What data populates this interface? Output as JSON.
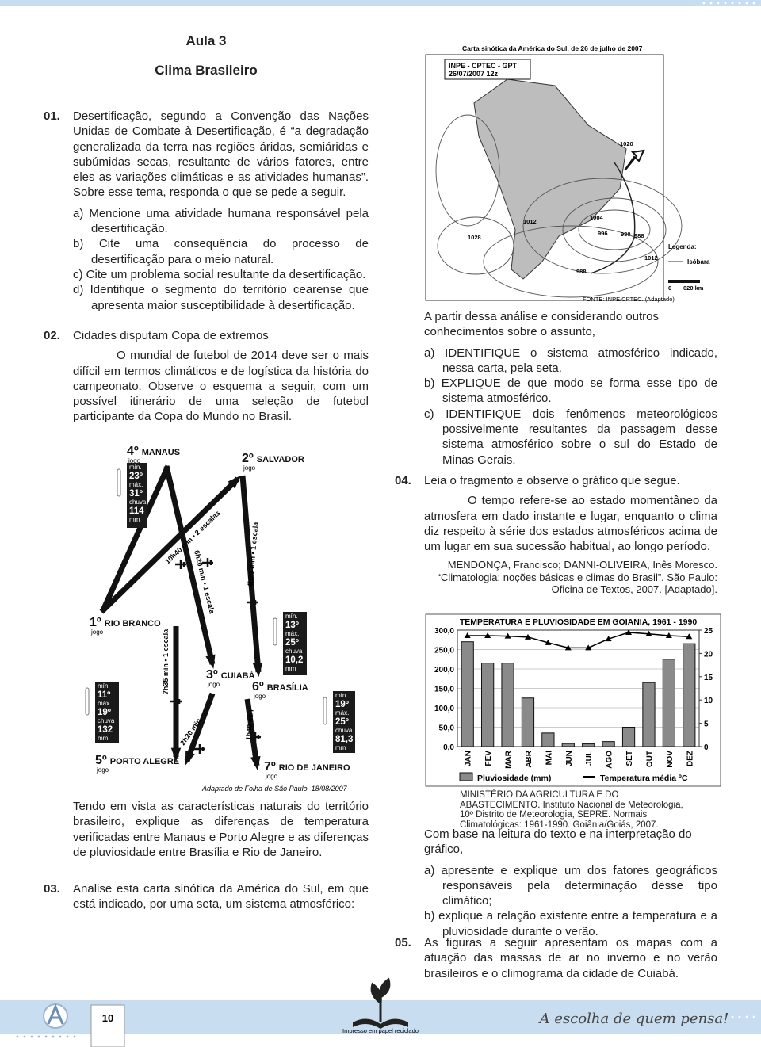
{
  "header": {
    "lesson": "Aula 3",
    "subject": "Clima Brasileiro"
  },
  "q01": {
    "number": "01.",
    "text": "Desertificação, segundo a Convenção das Nações Unidas de Combate à Desertificação, é “a degradação generalizada da terra nas regiões áridas, semiáridas e subúmidas secas, resultante de vários fatores, entre eles as variações climáticas e as atividades humanas”. Sobre esse tema, responda o que se pede a seguir.",
    "items": [
      "a) Mencione uma atividade humana responsável pela desertificação.",
      "b) Cite uma consequência do processo de desertificação para o meio natural.",
      "c) Cite um problema social resultante da desertificação.",
      "d) Identifique o segmento do território cearense que apresenta maior susceptibilidade à desertificação."
    ]
  },
  "q02": {
    "number": "02.",
    "text": "Cidades disputam Copa de extremos",
    "quote": "O mundial de futebol de 2014 deve ser o mais difícil em termos climáticos e de logística da história do campeonato. Observe o esquema a seguir, com um possível itinerário de uma seleção de futebol participante da Copa do Mundo no Brasil.",
    "figure": {
      "cities": [
        {
          "rank": "4º",
          "name": "MANAUS",
          "note": "jogo"
        },
        {
          "rank": "2º",
          "name": "SALVADOR",
          "note": "jogo"
        },
        {
          "rank": "1º",
          "name": "RIO BRANCO",
          "note": "jogo"
        },
        {
          "rank": "3º",
          "name": "CUIABÁ",
          "note": "jogo"
        },
        {
          "rank": "6º",
          "name": "BRASÍLIA",
          "note": "jogo"
        },
        {
          "rank": "5º",
          "name": "PORTO ALEGRE",
          "note": "jogo"
        },
        {
          "rank": "7º",
          "name": "RIO DE JANEIRO",
          "note": "jogo"
        }
      ],
      "weather": [
        {
          "lines": [
            "mín.",
            "23º",
            "máx.",
            "31º",
            "chuva",
            "114",
            "mm"
          ]
        },
        {
          "lines": [
            "mín.",
            "13º",
            "máx.",
            "25º",
            "chuva",
            "10,2",
            "mm"
          ]
        },
        {
          "lines": [
            "mín.",
            "11º",
            "máx.",
            "19º",
            "chuva",
            "132",
            "mm"
          ]
        },
        {
          "lines": [
            "mín.",
            "19º",
            "máx.",
            "25º",
            "chuva",
            "81,3",
            "mm"
          ]
        }
      ],
      "routes": [
        "10h40 min • 2 escalas",
        "6h20 min • 1 escala",
        "4h20 min • 1 escala",
        "7h35 min • 1 escala",
        "2h20 min",
        "1h40 min"
      ],
      "credit": "Adaptado de Folha de São Paulo, 18/08/2007"
    },
    "question": "Tendo em vista as características naturais do território brasileiro, explique as diferenças de temperatura verificadas entre Manaus e Porto Alegre e as diferenças de pluviosidade entre Brasília e Rio de Janeiro."
  },
  "q03": {
    "number": "03.",
    "text": "Analise esta carta sinótica da América do Sul, em que está indicado, por uma seta, um sistema atmosférico:",
    "map": {
      "title": "Carta sinótica da América do Sul, de 26 de julho de 2007",
      "stamp": [
        "INPE - CPTEC - GPT",
        "26/07/2007  12z"
      ],
      "isobars": [
        "1020",
        "1012",
        "1004",
        "996",
        "980",
        "988",
        "1028",
        "1012",
        "988"
      ],
      "legend_title": "Legenda:",
      "legend_item": "Isóbara",
      "scale": [
        "0",
        "620 km"
      ],
      "source": "FONTE: INPE/CPTEC. (Adaptado)"
    },
    "intro": "A partir dessa análise e considerando outros conhecimentos sobre o assunto,",
    "items": [
      "a) IDENTIFIQUE o sistema atmosférico indicado, nessa carta, pela seta.",
      "b) EXPLIQUE de que modo se forma esse tipo de sistema atmosférico.",
      "c) IDENTIFIQUE dois fenômenos meteorológicos possivelmente resultantes da passagem desse sistema atmosférico sobre o sul do Estado de Minas Gerais."
    ]
  },
  "q04": {
    "number": "04.",
    "text": "Leia o fragmento e observe o gráfico que segue.",
    "quote": "O tempo refere-se ao estado momentâneo da atmosfera em dado instante e lugar, enquanto o clima diz respeito à série dos estados atmosféricos acima de um lugar em sua sucessão habitual, ao longo período.",
    "citation": "MENDONÇA, Francisco; DANNI-OLIVEIRA, Inês Moresco. “Climatologia: noções básicas e climas do Brasil”. São Paulo: Oficina de Textos, 2007. [Adaptado].",
    "prompt": "Com base na leitura do texto e na interpretação do gráfico,",
    "items": [
      "a) apresente e explique um dos fatores geográficos responsáveis pela determinação desse tipo climático;",
      "b) explique a relação existente entre a temperatura e a pluviosidade durante o verão."
    ]
  },
  "chart_data": {
    "type": "bar",
    "title": "TEMPERATURA E PLUVIOSIDADE EM GOIANIA, 1961 - 1990",
    "categories": [
      "JAN",
      "FEV",
      "MAR",
      "ABR",
      "MAI",
      "JUN",
      "JUL",
      "AGO",
      "SET",
      "OUT",
      "NOV",
      "DEZ"
    ],
    "series": [
      {
        "name": "Pluviosidade (mm)",
        "type": "bar",
        "color": "#8a8a8a",
        "values": [
          270,
          215,
          215,
          125,
          35,
          8,
          7,
          13,
          50,
          165,
          225,
          265
        ]
      },
      {
        "name": "Temperatura média ºC",
        "type": "line",
        "axis": "y2",
        "color": "#000000",
        "values": [
          23.8,
          23.8,
          23.7,
          23.5,
          22.3,
          21.2,
          21.2,
          23.1,
          24.5,
          24.2,
          23.8,
          23.6
        ]
      }
    ],
    "ylim": [
      0,
      300
    ],
    "yticks": [
      {
        "value": 0,
        "label": "0,0"
      },
      {
        "value": 50,
        "label": "50,0"
      },
      {
        "value": 100,
        "label": "100,0"
      },
      {
        "value": 150,
        "label": "150,0"
      },
      {
        "value": 200,
        "label": "200,0"
      },
      {
        "value": 250,
        "label": "250,0"
      },
      {
        "value": 300,
        "label": "300,0"
      }
    ],
    "y2lim": [
      0,
      25
    ],
    "y2ticks": [
      0,
      5,
      10,
      15,
      20,
      25
    ],
    "grid": true,
    "source": "MINISTÉRIO DA AGRICULTURA E DO ABASTECIMENTO. Instituto Nacional de Meteorologia, 10º Distrito de Meteorologia, SEPRE. Normais Climatológicas: 1961-1990. Goiânia/Goiás, 2007."
  },
  "q05": {
    "number": "05.",
    "text": "As figuras a seguir apresentam os mapas com a atuação das massas de ar no inverno e no verão brasileiros e o climograma da cidade de Cuiabá."
  },
  "footer": {
    "page": "10",
    "imprint": "Impresso em papel reciclado",
    "slogan": "A escolha de quem pensa!"
  }
}
